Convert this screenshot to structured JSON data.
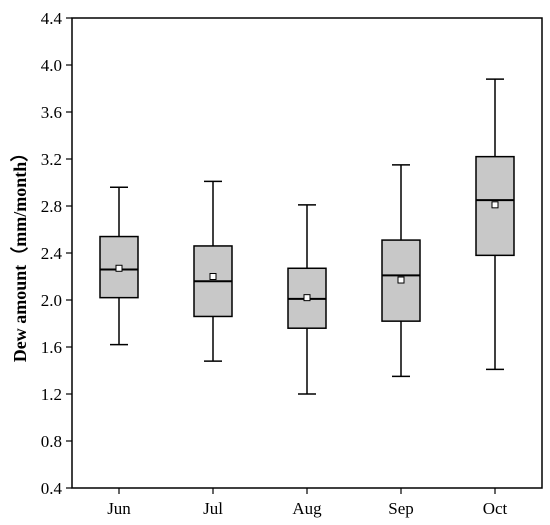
{
  "chart_data": {
    "type": "box",
    "title": "",
    "xlabel": "",
    "ylabel": "Dew amount（mm/month）",
    "ylim": [
      0.4,
      4.4
    ],
    "yticks": [
      "0.4",
      "0.8",
      "1.2",
      "1.6",
      "2.0",
      "2.4",
      "2.8",
      "3.2",
      "3.6",
      "4.0",
      "4.4"
    ],
    "categories": [
      "Jun",
      "Jul",
      "Aug",
      "Sep",
      "Oct"
    ],
    "grid": false,
    "legend": "none",
    "colors": {
      "box_fill": "#c8c8c8",
      "stroke": "#000000",
      "mean_marker_fill": "#ffffff"
    },
    "boxes": [
      {
        "category": "Jun",
        "whisker_low": 1.62,
        "q1": 2.02,
        "median": 2.26,
        "q3": 2.54,
        "whisker_high": 2.96,
        "mean": 2.27
      },
      {
        "category": "Jul",
        "whisker_low": 1.48,
        "q1": 1.86,
        "median": 2.16,
        "q3": 2.46,
        "whisker_high": 3.01,
        "mean": 2.2
      },
      {
        "category": "Aug",
        "whisker_low": 1.2,
        "q1": 1.76,
        "median": 2.01,
        "q3": 2.27,
        "whisker_high": 2.81,
        "mean": 2.02
      },
      {
        "category": "Sep",
        "whisker_low": 1.35,
        "q1": 1.82,
        "median": 2.21,
        "q3": 2.51,
        "whisker_high": 3.15,
        "mean": 2.17
      },
      {
        "category": "Oct",
        "whisker_low": 1.41,
        "q1": 2.38,
        "median": 2.85,
        "q3": 3.22,
        "whisker_high": 3.88,
        "mean": 2.81
      }
    ]
  }
}
